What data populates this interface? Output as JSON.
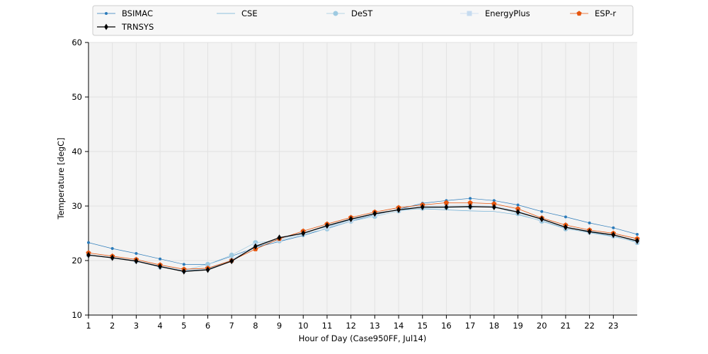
{
  "chart_data": {
    "type": "line",
    "title": "",
    "xlabel": "Hour of Day (Case950FF, Jul14)",
    "ylabel": "Temperature [degC]",
    "xlim": [
      1,
      24
    ],
    "ylim": [
      10,
      60
    ],
    "xticks": [
      1,
      2,
      3,
      4,
      5,
      6,
      7,
      8,
      9,
      10,
      11,
      12,
      13,
      14,
      15,
      16,
      17,
      18,
      19,
      20,
      21,
      22,
      23
    ],
    "yticks": [
      10,
      20,
      30,
      40,
      50,
      60
    ],
    "grid": true,
    "legend_position": "top",
    "x": [
      1,
      2,
      3,
      4,
      5,
      6,
      7,
      8,
      9,
      10,
      11,
      12,
      13,
      14,
      15,
      16,
      17,
      18,
      19,
      20,
      21,
      22,
      23,
      24
    ],
    "series": [
      {
        "name": "BSIMAC",
        "color": "#2b7bba",
        "marker": "dot",
        "values": [
          23.3,
          22.2,
          21.3,
          20.3,
          19.3,
          19.3,
          20.8,
          22.4,
          23.5,
          24.6,
          25.9,
          27.2,
          28.4,
          29.4,
          30.5,
          31.0,
          31.4,
          31.0,
          30.2,
          29.0,
          28.0,
          26.9,
          26.0,
          24.8
        ]
      },
      {
        "name": "CSE",
        "color": "#6baed6",
        "marker": "none",
        "values": [
          21.0,
          20.5,
          19.9,
          19.0,
          18.1,
          18.4,
          20.1,
          22.4,
          23.9,
          25.1,
          26.2,
          27.5,
          28.6,
          29.3,
          29.5,
          29.3,
          29.1,
          29.0,
          28.4,
          27.3,
          25.9,
          25.1,
          24.4,
          23.4
        ]
      },
      {
        "name": "DeST",
        "color": "#9ecae1",
        "marker": "circle",
        "values": [
          21.0,
          20.6,
          19.9,
          18.8,
          18.2,
          19.3,
          21.0,
          23.3,
          23.6,
          24.9,
          25.8,
          27.2,
          28.1,
          29.1,
          29.6,
          29.7,
          29.8,
          29.9,
          28.6,
          27.2,
          25.8,
          25.2,
          24.5,
          23.3
        ]
      },
      {
        "name": "EnergyPlus",
        "color": "#c6dbef",
        "marker": "square",
        "values": [
          21.1,
          20.6,
          20.0,
          19.0,
          18.2,
          18.6,
          20.1,
          22.8,
          23.9,
          25.2,
          26.1,
          27.4,
          28.5,
          29.4,
          30.0,
          30.1,
          30.2,
          30.0,
          29.1,
          27.6,
          26.2,
          25.4,
          24.7,
          23.6
        ]
      },
      {
        "name": "ESP-r",
        "color": "#e6550d",
        "marker": "pentagon",
        "values": [
          21.4,
          20.8,
          20.2,
          19.2,
          18.4,
          18.6,
          20.0,
          22.1,
          24.0,
          25.4,
          26.7,
          27.9,
          28.9,
          29.7,
          30.2,
          30.6,
          30.6,
          30.4,
          29.5,
          27.8,
          26.5,
          25.6,
          25.0,
          24.0
        ]
      },
      {
        "name": "TRNSYS",
        "color": "#000000",
        "marker": "diamond",
        "values": [
          21.0,
          20.5,
          19.9,
          18.9,
          18.0,
          18.3,
          19.9,
          22.6,
          24.2,
          25.0,
          26.4,
          27.6,
          28.6,
          29.3,
          29.8,
          29.8,
          29.9,
          29.8,
          28.9,
          27.6,
          26.1,
          25.3,
          24.7,
          23.6
        ]
      }
    ]
  }
}
